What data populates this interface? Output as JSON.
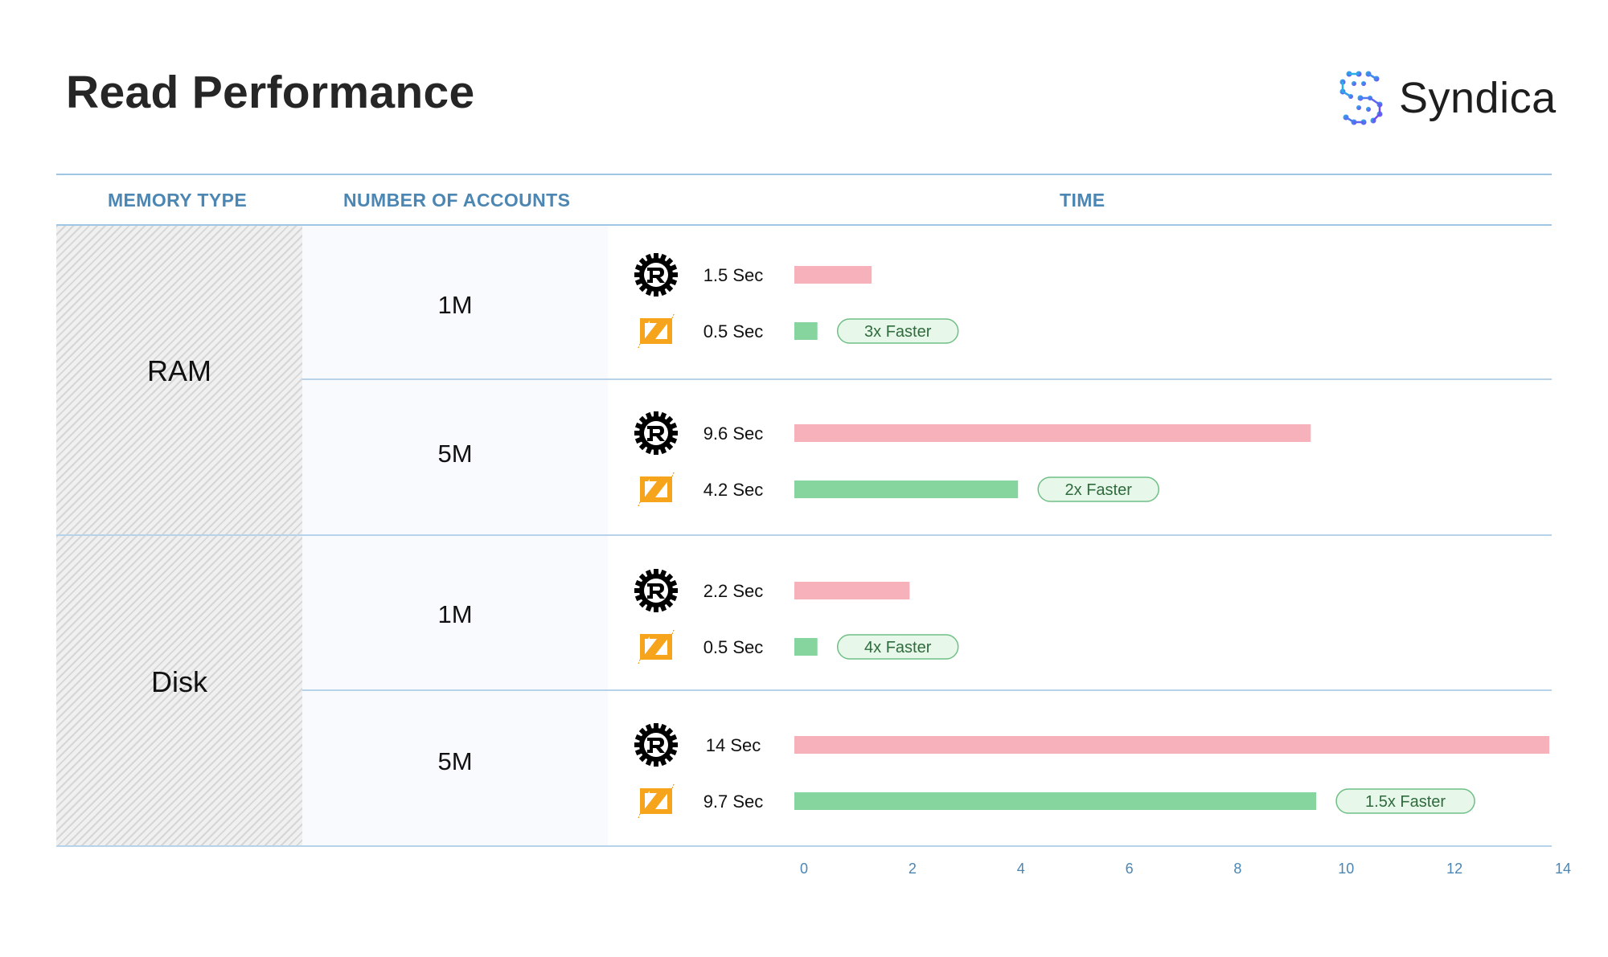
{
  "title": "Read Performance",
  "logo": {
    "text": "Syndica"
  },
  "table": {
    "headers": {
      "memory_type": "MEMORY TYPE",
      "accounts": "NUMBER OF ACCOUNTS",
      "time": "TIME"
    },
    "groups": [
      {
        "memory": "RAM",
        "rows": [
          {
            "accounts": "1M"
          },
          {
            "accounts": "5M"
          }
        ]
      },
      {
        "memory": "Disk",
        "rows": [
          {
            "accounts": "1M"
          },
          {
            "accounts": "5M"
          }
        ]
      }
    ]
  },
  "icons": {
    "rust": "rust-logo-icon",
    "zig": "zig-logo-icon"
  },
  "colors": {
    "rust_bar": "#f7b1ba",
    "zig_bar": "#86d59f",
    "badge_fill": "#e7f8ea",
    "badge_stroke": "#6fbf85",
    "axis": "#4c86b3",
    "grid_line": "#b6d3e9"
  },
  "chart_data": {
    "type": "bar",
    "orientation": "horizontal",
    "xlim": [
      0,
      14
    ],
    "x_ticks": [
      0,
      2,
      4,
      6,
      8,
      10,
      12,
      14
    ],
    "series": [
      {
        "name": "Rust",
        "icon": "rust-logo-icon",
        "color": "#f7b1ba"
      },
      {
        "name": "Zig",
        "icon": "zig-logo-icon",
        "color": "#86d59f"
      }
    ],
    "rows": [
      {
        "memory": "RAM",
        "accounts": "1M",
        "rust": {
          "value": 1.5,
          "label": "1.5 Sec"
        },
        "zig": {
          "value": 0.5,
          "label": "0.5 Sec"
        },
        "badge": "3x  Faster"
      },
      {
        "memory": "RAM",
        "accounts": "5M",
        "rust": {
          "value": 9.6,
          "label": "9.6 Sec"
        },
        "zig": {
          "value": 4.2,
          "label": "4.2 Sec"
        },
        "badge": "2x  Faster"
      },
      {
        "memory": "Disk",
        "accounts": "1M",
        "rust": {
          "value": 2.2,
          "label": "2.2 Sec"
        },
        "zig": {
          "value": 0.5,
          "label": "0.5 Sec"
        },
        "badge": "4x  Faster"
      },
      {
        "memory": "Disk",
        "accounts": "5M",
        "rust": {
          "value": 14,
          "label": "14 Sec"
        },
        "zig": {
          "value": 9.7,
          "label": "9.7 Sec"
        },
        "badge": "1.5x  Faster"
      }
    ]
  }
}
